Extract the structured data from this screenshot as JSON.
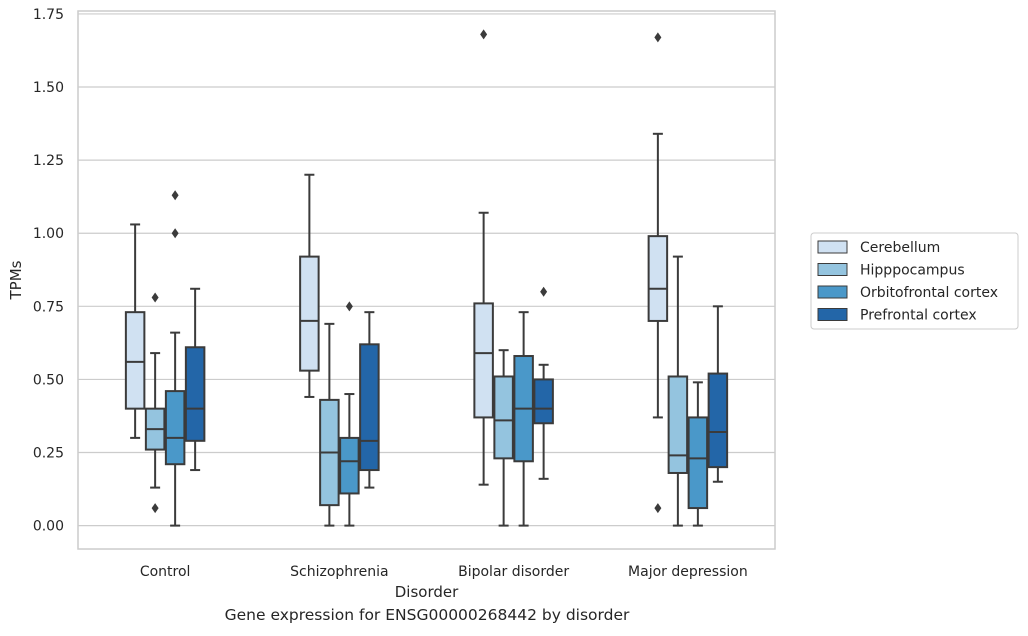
{
  "caption": "Gene expression for ENSG00000268442 by disorder",
  "chart_data": {
    "type": "box",
    "xlabel": "Disorder",
    "ylabel": "TPMs",
    "ylim": [
      -0.08,
      1.76
    ],
    "yticks": [
      "0.00",
      "0.25",
      "0.50",
      "0.75",
      "1.00",
      "1.25",
      "1.50",
      "1.75"
    ],
    "ytick_values": [
      0,
      0.25,
      0.5,
      0.75,
      1.0,
      1.25,
      1.5,
      1.75
    ],
    "grid": "horizontal",
    "legend_position": "right",
    "categories": [
      "Control",
      "Schizophrenia",
      "Bipolar disorder",
      "Major depression"
    ],
    "series": [
      {
        "name": "Cerebellum",
        "color": "#d0e1f2",
        "boxes": [
          {
            "min": 0.3,
            "q1": 0.4,
            "median": 0.56,
            "q3": 0.73,
            "max": 1.03,
            "outliers": []
          },
          {
            "min": 0.44,
            "q1": 0.53,
            "median": 0.7,
            "q3": 0.92,
            "max": 1.2,
            "outliers": []
          },
          {
            "min": 0.14,
            "q1": 0.37,
            "median": 0.59,
            "q3": 0.76,
            "max": 1.07,
            "outliers": [
              1.68
            ]
          },
          {
            "min": 0.37,
            "q1": 0.7,
            "median": 0.81,
            "q3": 0.99,
            "max": 1.34,
            "outliers": [
              1.67,
              0.06
            ]
          }
        ]
      },
      {
        "name": "Hipppocampus",
        "color": "#94c4df",
        "boxes": [
          {
            "min": 0.13,
            "q1": 0.26,
            "median": 0.33,
            "q3": 0.4,
            "max": 0.59,
            "outliers": [
              0.78,
              0.06
            ]
          },
          {
            "min": 0.0,
            "q1": 0.07,
            "median": 0.25,
            "q3": 0.43,
            "max": 0.69,
            "outliers": []
          },
          {
            "min": 0.0,
            "q1": 0.23,
            "median": 0.36,
            "q3": 0.51,
            "max": 0.6,
            "outliers": []
          },
          {
            "min": 0.0,
            "q1": 0.18,
            "median": 0.24,
            "q3": 0.51,
            "max": 0.92,
            "outliers": []
          }
        ]
      },
      {
        "name": "Orbitofrontal cortex",
        "color": "#4a98c9",
        "boxes": [
          {
            "min": 0.0,
            "q1": 0.21,
            "median": 0.3,
            "q3": 0.46,
            "max": 0.66,
            "outliers": [
              1.0,
              1.13
            ]
          },
          {
            "min": 0.0,
            "q1": 0.11,
            "median": 0.22,
            "q3": 0.3,
            "max": 0.45,
            "outliers": [
              0.75
            ]
          },
          {
            "min": 0.0,
            "q1": 0.22,
            "median": 0.4,
            "q3": 0.58,
            "max": 0.73,
            "outliers": []
          },
          {
            "min": 0.0,
            "q1": 0.06,
            "median": 0.23,
            "q3": 0.37,
            "max": 0.49,
            "outliers": []
          }
        ]
      },
      {
        "name": "Prefrontal cortex",
        "color": "#2366a8",
        "boxes": [
          {
            "min": 0.19,
            "q1": 0.29,
            "median": 0.4,
            "q3": 0.61,
            "max": 0.81,
            "outliers": []
          },
          {
            "min": 0.13,
            "q1": 0.19,
            "median": 0.29,
            "q3": 0.62,
            "max": 0.73,
            "outliers": []
          },
          {
            "min": 0.16,
            "q1": 0.35,
            "median": 0.4,
            "q3": 0.5,
            "max": 0.55,
            "outliers": [
              0.8
            ]
          },
          {
            "min": 0.15,
            "q1": 0.2,
            "median": 0.32,
            "q3": 0.52,
            "max": 0.75,
            "outliers": []
          }
        ]
      }
    ]
  }
}
